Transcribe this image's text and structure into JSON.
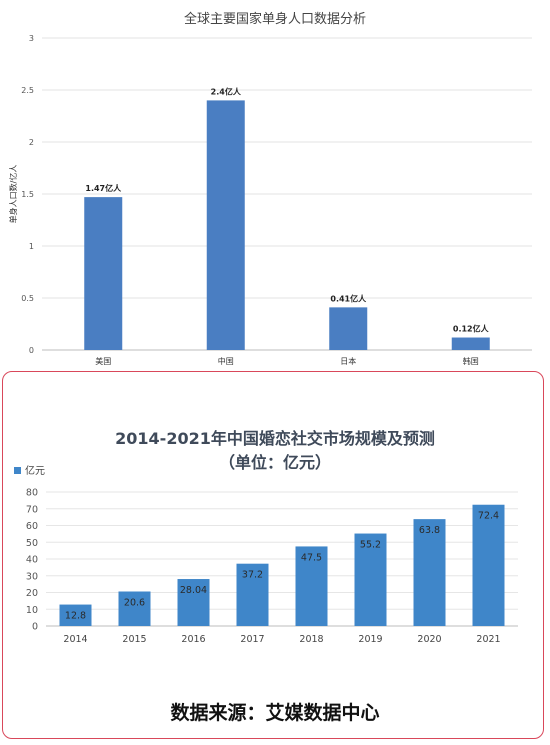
{
  "chart_data": [
    {
      "type": "bar",
      "title": "全球主要国家单身人口数据分析",
      "ylabel": "单身人口数/亿人",
      "xlabel": "",
      "categories": [
        "美国",
        "中国",
        "日本",
        "韩国"
      ],
      "values": [
        1.47,
        2.4,
        0.41,
        0.12
      ],
      "data_labels": [
        "1.47亿人",
        "2.4亿人",
        "0.41亿人",
        "0.12亿人"
      ],
      "ylim": [
        0,
        3
      ],
      "yticks": [
        "0",
        "0.5",
        "1",
        "1.5",
        "2",
        "2.5",
        "3"
      ],
      "grid": true,
      "bar_color": "#4a7ec2"
    },
    {
      "type": "bar",
      "title": "2014-2021年中国婚恋社交市场规模及预测",
      "subtitle": "（单位：亿元）",
      "legend": [
        "亿元"
      ],
      "legend_position": "top-left",
      "categories": [
        "2014",
        "2015",
        "2016",
        "2017",
        "2018",
        "2019",
        "2020",
        "2021"
      ],
      "values": [
        12.8,
        20.6,
        28.04,
        37.2,
        47.5,
        55.2,
        63.8,
        72.4
      ],
      "data_labels": [
        "12.8",
        "20.6",
        "28.04",
        "37.2",
        "47.5",
        "55.2",
        "63.8",
        "72.4"
      ],
      "ylim": [
        0,
        80
      ],
      "yticks": [
        "0",
        "10",
        "20",
        "30",
        "40",
        "50",
        "60",
        "70",
        "80"
      ],
      "grid": true,
      "bar_color": "#3f86c9"
    }
  ],
  "source": "数据来源：艾媒数据中心"
}
